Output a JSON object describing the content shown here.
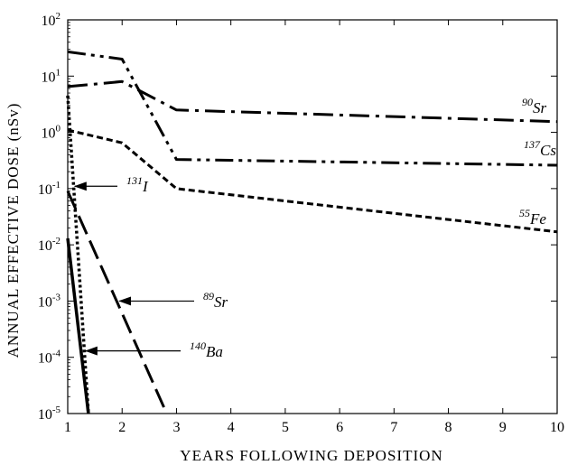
{
  "chart_data": {
    "type": "line",
    "xlabel": "YEARS FOLLOWING DEPOSITION",
    "ylabel": "ANNUAL EFFECTIVE DOSE (nSv)",
    "xlim": [
      1,
      10
    ],
    "ylim_log10": [
      -5,
      2
    ],
    "y_scale": "log",
    "x_ticks": [
      "1",
      "2",
      "3",
      "4",
      "5",
      "6",
      "7",
      "8",
      "9",
      "10"
    ],
    "y_ticks": [
      {
        "base": "10",
        "exp": "-5"
      },
      {
        "base": "10",
        "exp": "-4"
      },
      {
        "base": "10",
        "exp": "-3"
      },
      {
        "base": "10",
        "exp": "-2"
      },
      {
        "base": "10",
        "exp": "-1"
      },
      {
        "base": "10",
        "exp": "0"
      },
      {
        "base": "10",
        "exp": "1"
      },
      {
        "base": "10",
        "exp": "2"
      }
    ],
    "grid": false,
    "series": [
      {
        "mass": "90",
        "symbol": "Sr",
        "style": "dash-dot",
        "x": [
          1,
          2,
          3,
          10
        ],
        "y": [
          6.5,
          8.0,
          2.5,
          1.55
        ]
      },
      {
        "mass": "137",
        "symbol": "Cs",
        "style": "dash-dot-dot",
        "x": [
          1,
          2,
          3,
          10
        ],
        "y": [
          27,
          20,
          0.33,
          0.26
        ]
      },
      {
        "mass": "55",
        "symbol": "Fe",
        "style": "short-dash",
        "x": [
          1,
          2,
          3,
          10
        ],
        "y": [
          1.1,
          0.65,
          0.1,
          0.017
        ]
      },
      {
        "mass": "131",
        "symbol": "I",
        "style": "dotted",
        "x": [
          1,
          1.38
        ],
        "y": [
          4.5,
          1e-05
        ]
      },
      {
        "mass": "89",
        "symbol": "Sr",
        "style": "long-dash",
        "x": [
          1,
          2.82
        ],
        "y": [
          0.09,
          1e-05
        ]
      },
      {
        "mass": "140",
        "symbol": "Ba",
        "style": "solid",
        "x": [
          1,
          1.38
        ],
        "y": [
          0.013,
          1e-05
        ]
      }
    ],
    "annotations": [
      {
        "mass": "131",
        "symbol": "I",
        "arrow_to": {
          "x": 1.13,
          "y": 0.11
        }
      },
      {
        "mass": "89",
        "symbol": "Sr",
        "arrow_to": {
          "x": 1.95,
          "y": 0.001
        }
      },
      {
        "mass": "140",
        "symbol": "Ba",
        "arrow_to": {
          "x": 1.33,
          "y": 0.00013
        }
      }
    ],
    "series_label_positions": [
      "right-end",
      "right-end",
      "right-end",
      "arrow",
      "arrow",
      "arrow"
    ]
  }
}
